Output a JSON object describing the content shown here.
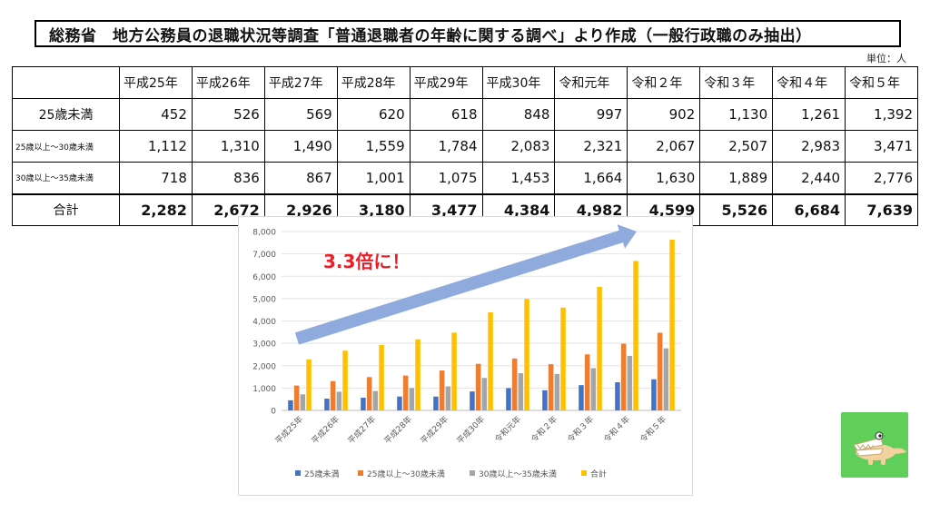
{
  "title": "総務省　地方公務員の退職状況等調査「普通退職者の年齢に関する調べ」より作成（一般行政職のみ抽出）",
  "unit": "単位：人",
  "table": {
    "headers": [
      "平成25年",
      "平成26年",
      "平成27年",
      "平成28年",
      "平成29年",
      "平成30年",
      "令和元年",
      "令和２年",
      "令和３年",
      "令和４年",
      "令和５年"
    ],
    "rows": [
      {
        "label": "25歳未満",
        "values": [
          "452",
          "526",
          "569",
          "620",
          "618",
          "848",
          "997",
          "902",
          "1,130",
          "1,261",
          "1,392"
        ]
      },
      {
        "label": "25歳以上～30歳未満",
        "values": [
          "1,112",
          "1,310",
          "1,490",
          "1,559",
          "1,784",
          "2,083",
          "2,321",
          "2,067",
          "2,507",
          "2,983",
          "3,471"
        ]
      },
      {
        "label": "30歳以上～35歳未満",
        "values": [
          "718",
          "836",
          "867",
          "1,001",
          "1,075",
          "1,453",
          "1,664",
          "1,630",
          "1,889",
          "2,440",
          "2,776"
        ]
      },
      {
        "label": "合計",
        "values": [
          "2,282",
          "2,672",
          "2,926",
          "3,180",
          "3,477",
          "4,384",
          "4,982",
          "4,599",
          "5,526",
          "6,684",
          "7,639"
        ]
      }
    ]
  },
  "chart_data": {
    "type": "bar",
    "categories": [
      "平成25年",
      "平成26年",
      "平成27年",
      "平成28年",
      "平成29年",
      "平成30年",
      "令和元年",
      "令和２年",
      "令和３年",
      "令和４年",
      "令和５年"
    ],
    "series": [
      {
        "name": "25歳未満",
        "color": "#4472c4",
        "values": [
          452,
          526,
          569,
          620,
          618,
          848,
          997,
          902,
          1130,
          1261,
          1392
        ]
      },
      {
        "name": "25歳以上～30歳未満",
        "color": "#ed7d31",
        "values": [
          1112,
          1310,
          1490,
          1559,
          1784,
          2083,
          2321,
          2067,
          2507,
          2983,
          3471
        ]
      },
      {
        "name": "30歳以上～35歳未満",
        "color": "#a5a5a5",
        "values": [
          718,
          836,
          867,
          1001,
          1075,
          1453,
          1664,
          1630,
          1889,
          2440,
          2776
        ]
      },
      {
        "name": "合計",
        "color": "#ffc000",
        "values": [
          2282,
          2672,
          2926,
          3180,
          3477,
          4384,
          4982,
          4599,
          5526,
          6684,
          7639
        ]
      }
    ],
    "ylim": [
      0,
      8000
    ],
    "yticks": [
      0,
      1000,
      2000,
      3000,
      4000,
      5000,
      6000,
      7000,
      8000
    ],
    "ytick_labels": [
      "0",
      "1,000",
      "2,000",
      "3,000",
      "4,000",
      "5,000",
      "6,000",
      "7,000",
      "8,000"
    ],
    "grid": true,
    "legend": "bottom",
    "annotation": {
      "text": "3.3倍に！",
      "color": "#e8202a"
    },
    "arrow_color": "#8faadc"
  },
  "mascot_icon": "crocodile-icon"
}
